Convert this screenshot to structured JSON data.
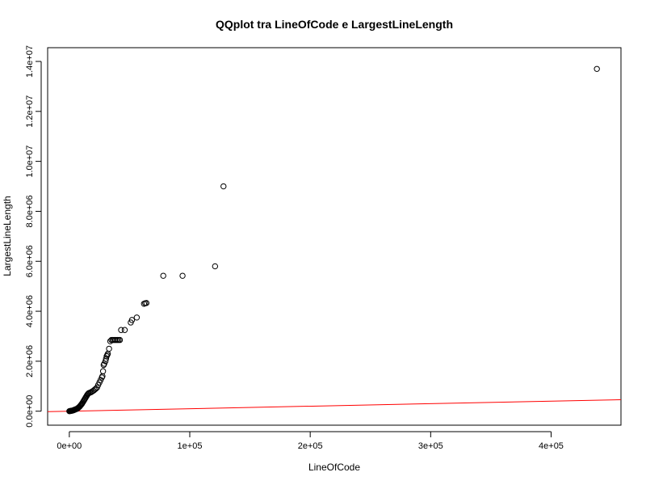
{
  "chart_data": {
    "type": "scatter",
    "title": "QQplot tra LineOfCode e LargestLineLength",
    "xlabel": "LineOfCode",
    "ylabel": "LargestLineLength",
    "xlim": [
      -18000,
      458000
    ],
    "ylim": [
      -560000,
      14550000
    ],
    "x_ticks": [
      {
        "value": 0,
        "label": "0e+00"
      },
      {
        "value": 100000,
        "label": "1e+05"
      },
      {
        "value": 200000,
        "label": "2e+05"
      },
      {
        "value": 300000,
        "label": "3e+05"
      },
      {
        "value": 400000,
        "label": "4e+05"
      }
    ],
    "y_ticks": [
      {
        "value": 0,
        "label": "0.0e+00"
      },
      {
        "value": 2000000,
        "label": "2.0e+06"
      },
      {
        "value": 4000000,
        "label": "4.0e+06"
      },
      {
        "value": 6000000,
        "label": "6.0e+06"
      },
      {
        "value": 8000000,
        "label": "8.0e+06"
      },
      {
        "value": 10000000,
        "label": "1.0e+07"
      },
      {
        "value": 12000000,
        "label": "1.2e+07"
      },
      {
        "value": 14000000,
        "label": "1.4e+07"
      }
    ],
    "points": [
      [
        0,
        0
      ],
      [
        500,
        5000
      ],
      [
        1000,
        10000
      ],
      [
        1500,
        15000
      ],
      [
        2000,
        20000
      ],
      [
        2500,
        25000
      ],
      [
        3000,
        30000
      ],
      [
        3500,
        40000
      ],
      [
        4000,
        50000
      ],
      [
        4500,
        60000
      ],
      [
        5000,
        70000
      ],
      [
        5500,
        80000
      ],
      [
        6000,
        90000
      ],
      [
        6500,
        100000
      ],
      [
        7000,
        120000
      ],
      [
        7500,
        140000
      ],
      [
        8000,
        160000
      ],
      [
        8500,
        180000
      ],
      [
        9000,
        210000
      ],
      [
        9500,
        240000
      ],
      [
        10000,
        270000
      ],
      [
        10500,
        300000
      ],
      [
        11000,
        340000
      ],
      [
        11500,
        380000
      ],
      [
        12000,
        420000
      ],
      [
        12500,
        460000
      ],
      [
        13000,
        500000
      ],
      [
        13500,
        540000
      ],
      [
        14000,
        580000
      ],
      [
        14500,
        620000
      ],
      [
        15000,
        660000
      ],
      [
        15500,
        690000
      ],
      [
        16000,
        720000
      ],
      [
        17000,
        740000
      ],
      [
        18000,
        760000
      ],
      [
        19000,
        790000
      ],
      [
        20000,
        820000
      ],
      [
        21000,
        860000
      ],
      [
        22000,
        900000
      ],
      [
        23000,
        950000
      ],
      [
        24000,
        1050000
      ],
      [
        25000,
        1150000
      ],
      [
        26000,
        1250000
      ],
      [
        27000,
        1350000
      ],
      [
        27500,
        1400000
      ],
      [
        28000,
        1600000
      ],
      [
        28500,
        1850000
      ],
      [
        29000,
        1900000
      ],
      [
        30000,
        2000000
      ],
      [
        30500,
        2100000
      ],
      [
        31000,
        2200000
      ],
      [
        31500,
        2250000
      ],
      [
        32000,
        2300000
      ],
      [
        33000,
        2500000
      ],
      [
        34000,
        2800000
      ],
      [
        35000,
        2850000
      ],
      [
        36000,
        2850000
      ],
      [
        37000,
        2850000
      ],
      [
        38000,
        2850000
      ],
      [
        39000,
        2850000
      ],
      [
        40000,
        2850000
      ],
      [
        41000,
        2850000
      ],
      [
        42000,
        2850000
      ],
      [
        43000,
        3250000
      ],
      [
        46000,
        3250000
      ],
      [
        51000,
        3550000
      ],
      [
        52000,
        3650000
      ],
      [
        56000,
        3750000
      ],
      [
        62000,
        4300000
      ],
      [
        63000,
        4320000
      ],
      [
        64000,
        4330000
      ],
      [
        78000,
        5420000
      ],
      [
        94000,
        5420000
      ],
      [
        121000,
        5800000
      ],
      [
        128000,
        9000000
      ],
      [
        438000,
        13700000
      ]
    ],
    "reference_line": {
      "color": "#ff0000",
      "from": [
        -18000,
        -19000
      ],
      "to": [
        458000,
        460000
      ]
    }
  }
}
